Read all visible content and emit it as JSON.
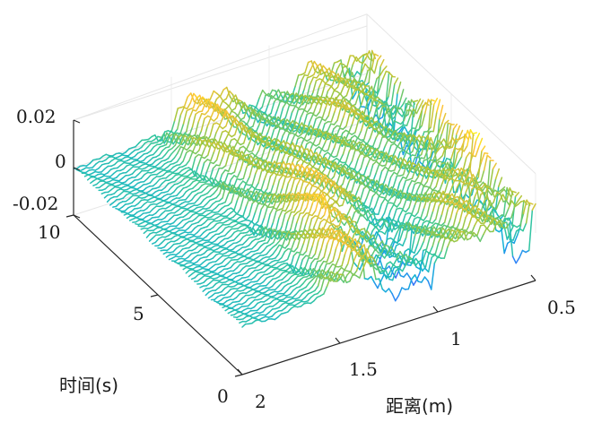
{
  "chart_data": {
    "type": "surface",
    "title": "",
    "xlabel": "距离(m)",
    "ylabel": "时间(s)",
    "zlabel": "",
    "x_ticks": [
      "0.5",
      "1",
      "1.5",
      "2"
    ],
    "x_range": [
      0.5,
      2.0
    ],
    "y_ticks": [
      "0",
      "5",
      "10"
    ],
    "y_range": [
      0,
      10
    ],
    "z_ticks": [
      "0.02",
      "0",
      "-0.02"
    ],
    "z_range": [
      -0.02,
      0.02
    ],
    "colormap": "parula",
    "grid": true,
    "series": [
      {
        "distance": [
          2.0,
          1.9,
          1.8,
          1.7,
          1.6,
          1.5,
          1.4,
          1.3,
          1.2,
          1.1,
          1.0,
          0.9,
          0.8,
          0.7,
          0.6,
          0.5
        ],
        "profile": [
          0.0,
          0.0,
          0.0,
          0.001,
          0.003,
          0.006,
          0.012,
          0.014,
          0.01,
          0.006,
          0.005,
          0.006,
          0.01,
          0.007,
          0.012,
          0.016
        ]
      }
    ]
  }
}
